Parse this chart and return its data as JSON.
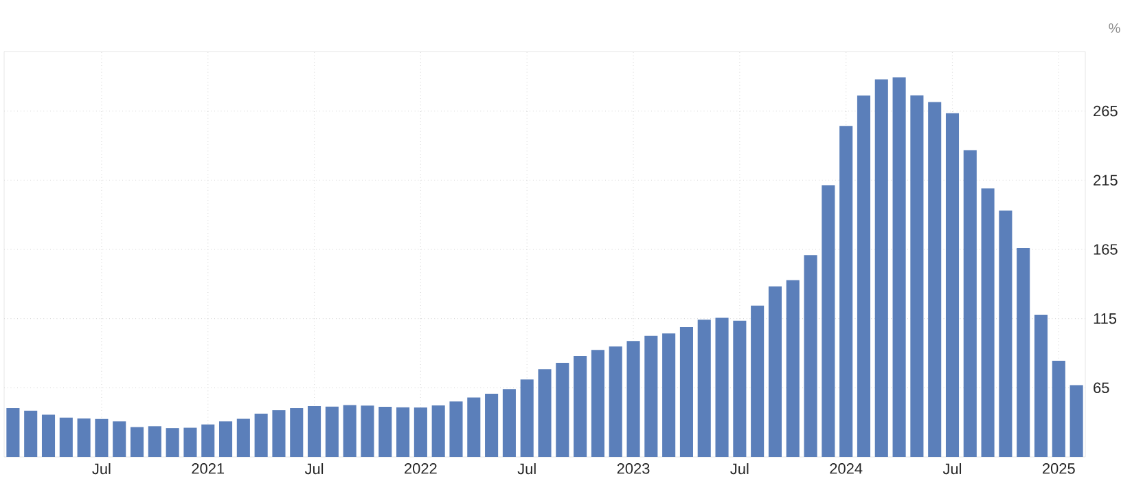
{
  "chart_data": {
    "type": "bar",
    "ylabel": "%",
    "color": "#5b7fba",
    "grid": true,
    "x": [
      "2020-02",
      "2020-03",
      "2020-04",
      "2020-05",
      "2020-06",
      "2020-07",
      "2020-08",
      "2020-09",
      "2020-10",
      "2020-11",
      "2020-12",
      "2021-01",
      "2021-02",
      "2021-03",
      "2021-04",
      "2021-05",
      "2021-06",
      "2021-07",
      "2021-08",
      "2021-09",
      "2021-10",
      "2021-11",
      "2021-12",
      "2022-01",
      "2022-02",
      "2022-03",
      "2022-04",
      "2022-05",
      "2022-06",
      "2022-07",
      "2022-08",
      "2022-09",
      "2022-10",
      "2022-11",
      "2022-12",
      "2023-01",
      "2023-02",
      "2023-03",
      "2023-04",
      "2023-05",
      "2023-06",
      "2023-07",
      "2023-08",
      "2023-09",
      "2023-10",
      "2023-11",
      "2023-12",
      "2024-01",
      "2024-02",
      "2024-03",
      "2024-04",
      "2024-05",
      "2024-06",
      "2024-07",
      "2024-08",
      "2024-09",
      "2024-10",
      "2024-11",
      "2024-12",
      "2025-01",
      "2025-02"
    ],
    "values": [
      50.3,
      48.4,
      45.6,
      43.4,
      42.8,
      42.4,
      40.7,
      36.6,
      37.2,
      35.8,
      36.1,
      38.5,
      40.7,
      42.6,
      46.3,
      48.8,
      50.2,
      51.8,
      51.4,
      52.5,
      52.1,
      51.2,
      50.9,
      50.7,
      52.3,
      55.1,
      58.0,
      60.7,
      64.0,
      71.0,
      78.5,
      83.0,
      88.0,
      92.4,
      94.8,
      98.8,
      102.5,
      104.3,
      108.8,
      114.2,
      115.6,
      113.4,
      124.4,
      138.3,
      142.7,
      160.9,
      211.4,
      254.2,
      276.2,
      287.9,
      289.4,
      276.4,
      271.5,
      263.4,
      236.7,
      209.0,
      193.0,
      166.0,
      117.8,
      84.5,
      66.9
    ],
    "xlim": [
      "2020-01-16",
      "2025-02-16"
    ],
    "xticks": [
      {
        "value": "2020-07",
        "label": "Jul"
      },
      {
        "value": "2021-01",
        "label": "2021"
      },
      {
        "value": "2021-07",
        "label": "Jul"
      },
      {
        "value": "2022-01",
        "label": "2022"
      },
      {
        "value": "2022-07",
        "label": "Jul"
      },
      {
        "value": "2023-01",
        "label": "2023"
      },
      {
        "value": "2023-07",
        "label": "Jul"
      },
      {
        "value": "2024-01",
        "label": "2024"
      },
      {
        "value": "2024-07",
        "label": "Jul"
      },
      {
        "value": "2025-01",
        "label": "2025"
      }
    ],
    "ylim": [
      15,
      308
    ],
    "yticks": [
      65,
      115,
      165,
      215,
      265
    ]
  }
}
